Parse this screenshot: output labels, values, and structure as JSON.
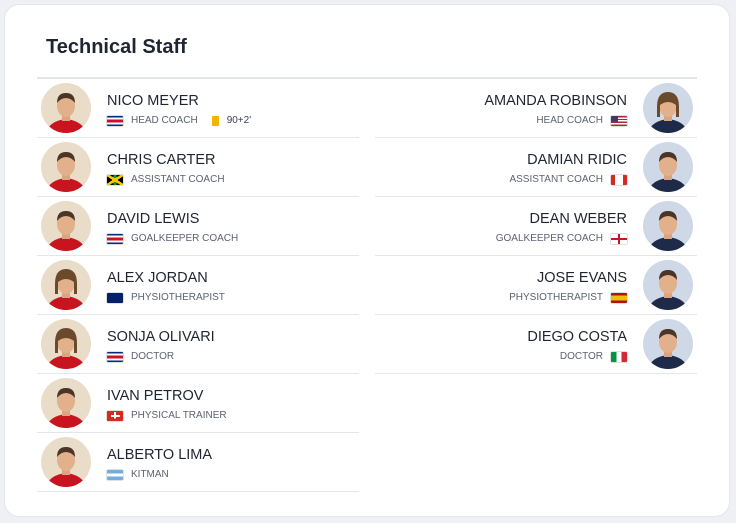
{
  "title": "Technical Staff",
  "colors": {
    "yellow_card": "#f2b400",
    "kit_red": "#c8141e"
  },
  "staff_left": [
    {
      "name": "NICO MEYER",
      "role": "HEAD COACH",
      "flag": "costa-rica",
      "card": "yellow",
      "minute": "90+2'"
    },
    {
      "name": "CHRIS CARTER",
      "role": "ASSISTANT COACH",
      "flag": "jamaica"
    },
    {
      "name": "DAVID LEWIS",
      "role": "GOALKEEPER COACH",
      "flag": "costa-rica"
    },
    {
      "name": "ALEX JORDAN",
      "role": "PHYSIOTHERAPIST",
      "flag": "new-zealand"
    },
    {
      "name": "SONJA OLIVARI",
      "role": "DOCTOR",
      "flag": "costa-rica"
    },
    {
      "name": "IVAN PETROV",
      "role": "PHYSICAL TRAINER",
      "flag": "switzerland"
    },
    {
      "name": "ALBERTO LIMA",
      "role": "KITMAN",
      "flag": "argentina"
    }
  ],
  "staff_right": [
    {
      "name": "AMANDA ROBINSON",
      "role": "HEAD COACH",
      "flag": "usa"
    },
    {
      "name": "DAMIAN RIDIC",
      "role": "ASSISTANT COACH",
      "flag": "canada"
    },
    {
      "name": "DEAN WEBER",
      "role": "GOALKEEPER COACH",
      "flag": "england"
    },
    {
      "name": "JOSE EVANS",
      "role": "PHYSIOTHERAPIST",
      "flag": "spain"
    },
    {
      "name": "DIEGO COSTA",
      "role": "DOCTOR",
      "flag": "italy"
    }
  ]
}
